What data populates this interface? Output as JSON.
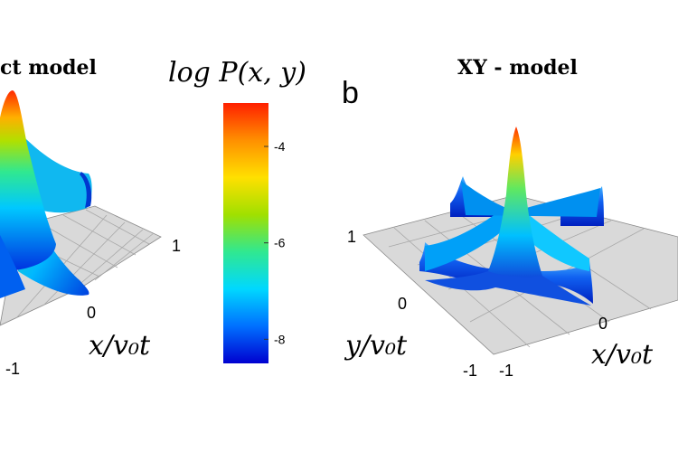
{
  "panels": [
    {
      "title": "ct model",
      "x_label": "x/v₀t",
      "x_ticks": [
        "-1",
        "0",
        "1"
      ],
      "surface": "four-arm star, axis ridges along x and y, high central peak"
    },
    {
      "panel_letter": "b",
      "title": "XY - model",
      "x_label": "x/v₀t",
      "y_label": "y/v₀t",
      "x_ticks": [
        "-1",
        "0"
      ],
      "y_ticks": [
        "-1",
        "0",
        "1"
      ],
      "surface": "sharp central peak with ridges along axes and walls at boundary"
    }
  ],
  "colorbar": {
    "label": "log P(x, y)",
    "ticks": [
      {
        "value": -4,
        "label": "-4"
      },
      {
        "value": -6,
        "label": "-6"
      },
      {
        "value": -8,
        "label": "-8"
      }
    ],
    "range": [
      -8.5,
      -3.1
    ],
    "colormap": [
      "#0000d0",
      "#0070ff",
      "#00d8ff",
      "#30e890",
      "#a0e000",
      "#ffe000",
      "#ff9000",
      "#ff2000"
    ]
  },
  "chart_data": [
    {
      "type": "heatmap",
      "title": "ct model",
      "xlabel": "x/v₀t",
      "ylabel": "",
      "x_ticks": [
        -1,
        0,
        1
      ],
      "colorbar_label": "log P(x, y)",
      "color_range": [
        -8.5,
        -3.1
      ],
      "values": {
        "peak": -3.2,
        "ridge": -7.5,
        "floor": -8.3
      }
    },
    {
      "type": "heatmap",
      "title": "XY - model",
      "xlabel": "x/v₀t",
      "ylabel": "y/v₀t",
      "x_ticks": [
        -1,
        0
      ],
      "y_ticks": [
        -1,
        0,
        1
      ],
      "colorbar_label": "log P(x, y)",
      "color_range": [
        -8.5,
        -3.1
      ],
      "values": {
        "peak": -3.3,
        "ridge": -7.8,
        "wall": -8.2
      }
    }
  ]
}
